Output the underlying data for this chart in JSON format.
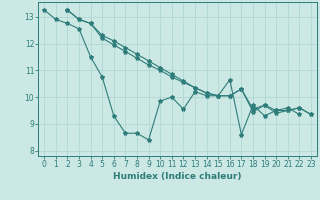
{
  "title": "",
  "xlabel": "Humidex (Indice chaleur)",
  "ylabel": "",
  "background_color": "#cce8e4",
  "grid_color": "#b0d8d4",
  "line_color": "#2e7d7a",
  "xlim": [
    -0.5,
    23.5
  ],
  "ylim": [
    7.8,
    13.55
  ],
  "yticks": [
    8,
    9,
    10,
    11,
    12,
    13
  ],
  "xticks": [
    0,
    1,
    2,
    3,
    4,
    5,
    6,
    7,
    8,
    9,
    10,
    11,
    12,
    13,
    14,
    15,
    16,
    17,
    18,
    19,
    20,
    21,
    22,
    23
  ],
  "series_zigzag": [
    13.25,
    12.9,
    12.75,
    12.55,
    11.5,
    10.75,
    9.3,
    8.65,
    8.65,
    8.4,
    9.85,
    10.0,
    9.55,
    10.2,
    10.05,
    10.05,
    10.65,
    8.6,
    9.7,
    9.3,
    9.5,
    9.6,
    9.35
  ],
  "series_line2": [
    13.25,
    12.9,
    12.75,
    12.3,
    12.1,
    11.85,
    11.6,
    11.35,
    11.1,
    10.85,
    10.6,
    10.35,
    10.15,
    10.05,
    10.05,
    10.3,
    9.55,
    9.7,
    9.5,
    9.5,
    9.6,
    9.35
  ],
  "series_line3": [
    13.25,
    12.9,
    12.75,
    12.2,
    11.95,
    11.7,
    11.45,
    11.2,
    11.0,
    10.75,
    10.55,
    10.35,
    10.15,
    10.05,
    10.05,
    10.3,
    9.45,
    9.7,
    9.4,
    9.5,
    9.6,
    9.35
  ],
  "zigzag_x_start": 0,
  "line2_x_start": 2,
  "line3_x_start": 2
}
